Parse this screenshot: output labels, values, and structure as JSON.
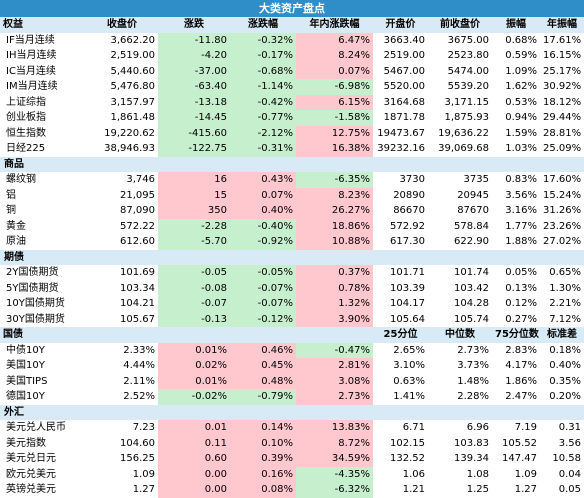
{
  "title": "大类资产盘点",
  "colors": {
    "header_bg": "#2f8ec7",
    "subheader_bg": "#d8eaf6",
    "up": "#ffc7ce",
    "down": "#c6efce"
  },
  "header": [
    "权益",
    "收盘价",
    "涨跌",
    "涨跌幅",
    "年内涨跌幅",
    "开盘价",
    "前收盘价",
    "振幅",
    "年振幅"
  ],
  "equities": [
    {
      "name": "IF当月连续",
      "close": "3,662.20",
      "chg": "-11.80",
      "pct": "-0.32%",
      "ytd": "6.47%",
      "open": "3663.40",
      "prev": "3675.00",
      "amp": "0.68%",
      "yamp": "17.61%",
      "chg_c": "g",
      "pct_c": "g",
      "ytd_c": "r"
    },
    {
      "name": "IH当月连续",
      "close": "2,519.00",
      "chg": "-4.20",
      "pct": "-0.17%",
      "ytd": "8.24%",
      "open": "2519.00",
      "prev": "2523.80",
      "amp": "0.59%",
      "yamp": "16.15%",
      "chg_c": "g",
      "pct_c": "g",
      "ytd_c": "r"
    },
    {
      "name": "IC当月连续",
      "close": "5,440.60",
      "chg": "-37.00",
      "pct": "-0.68%",
      "ytd": "0.07%",
      "open": "5467.00",
      "prev": "5474.00",
      "amp": "1.09%",
      "yamp": "25.17%",
      "chg_c": "g",
      "pct_c": "g",
      "ytd_c": "r"
    },
    {
      "name": "IM当月连续",
      "close": "5,476.80",
      "chg": "-63.40",
      "pct": "-1.14%",
      "ytd": "-6.98%",
      "open": "5520.00",
      "prev": "5539.20",
      "amp": "1.62%",
      "yamp": "30.92%",
      "chg_c": "g",
      "pct_c": "g",
      "ytd_c": "g"
    },
    {
      "name": "上证综指",
      "close": "3,157.97",
      "chg": "-13.18",
      "pct": "-0.42%",
      "ytd": "6.15%",
      "open": "3164.68",
      "prev": "3,171.15",
      "amp": "0.53%",
      "yamp": "18.12%",
      "chg_c": "g",
      "pct_c": "g",
      "ytd_c": "r"
    },
    {
      "name": "创业板指",
      "close": "1,861.48",
      "chg": "-14.45",
      "pct": "-0.77%",
      "ytd": "-1.58%",
      "open": "1871.78",
      "prev": "1,875.93",
      "amp": "0.94%",
      "yamp": "29.44%",
      "chg_c": "g",
      "pct_c": "g",
      "ytd_c": "g"
    },
    {
      "name": "恒生指数",
      "close": "19,220.62",
      "chg": "-415.60",
      "pct": "-2.12%",
      "ytd": "12.75%",
      "open": "19473.67",
      "prev": "19,636.22",
      "amp": "1.59%",
      "yamp": "28.81%",
      "chg_c": "g",
      "pct_c": "g",
      "ytd_c": "r"
    },
    {
      "name": "日经225",
      "close": "38,946.93",
      "chg": "-122.75",
      "pct": "-0.31%",
      "ytd": "16.38%",
      "open": "39232.16",
      "prev": "39,069.68",
      "amp": "1.03%",
      "yamp": "25.09%",
      "chg_c": "g",
      "pct_c": "g",
      "ytd_c": "r"
    }
  ],
  "commodities_label": "商品",
  "commodities": [
    {
      "name": "螺纹钢",
      "close": "3,746",
      "chg": "16",
      "pct": "0.43%",
      "ytd": "-6.35%",
      "open": "3730",
      "prev": "3735",
      "amp": "0.83%",
      "yamp": "17.60%",
      "chg_c": "r",
      "pct_c": "r",
      "ytd_c": "g"
    },
    {
      "name": "铝",
      "close": "21,095",
      "chg": "15",
      "pct": "0.07%",
      "ytd": "8.23%",
      "open": "20890",
      "prev": "20945",
      "amp": "3.56%",
      "yamp": "15.24%",
      "chg_c": "r",
      "pct_c": "r",
      "ytd_c": "r"
    },
    {
      "name": "铜",
      "close": "87,090",
      "chg": "350",
      "pct": "0.40%",
      "ytd": "26.27%",
      "open": "86670",
      "prev": "87670",
      "amp": "3.16%",
      "yamp": "31.26%",
      "chg_c": "r",
      "pct_c": "r",
      "ytd_c": "r"
    },
    {
      "name": "黄金",
      "close": "572.22",
      "chg": "-2.28",
      "pct": "-0.40%",
      "ytd": "18.86%",
      "open": "572.92",
      "prev": "578.84",
      "amp": "1.77%",
      "yamp": "23.26%",
      "chg_c": "g",
      "pct_c": "g",
      "ytd_c": "r"
    },
    {
      "name": "原油",
      "close": "612.60",
      "chg": "-5.70",
      "pct": "-0.92%",
      "ytd": "10.88%",
      "open": "617.30",
      "prev": "622.90",
      "amp": "1.88%",
      "yamp": "27.02%",
      "chg_c": "g",
      "pct_c": "g",
      "ytd_c": "r"
    }
  ],
  "futures_label": "期债",
  "futures": [
    {
      "name": "2Y国债期货",
      "close": "101.69",
      "chg": "-0.05",
      "pct": "-0.05%",
      "ytd": "0.37%",
      "open": "101.71",
      "prev": "101.74",
      "amp": "0.05%",
      "yamp": "0.65%",
      "chg_c": "g",
      "pct_c": "g",
      "ytd_c": "r"
    },
    {
      "name": "5Y国债期货",
      "close": "103.34",
      "chg": "-0.08",
      "pct": "-0.07%",
      "ytd": "0.78%",
      "open": "103.39",
      "prev": "103.42",
      "amp": "0.13%",
      "yamp": "1.30%",
      "chg_c": "g",
      "pct_c": "g",
      "ytd_c": "r"
    },
    {
      "name": "10Y国债期货",
      "close": "104.21",
      "chg": "-0.07",
      "pct": "-0.07%",
      "ytd": "1.32%",
      "open": "104.17",
      "prev": "104.28",
      "amp": "0.12%",
      "yamp": "2.21%",
      "chg_c": "g",
      "pct_c": "g",
      "ytd_c": "r"
    },
    {
      "name": "30Y国债期货",
      "close": "105.67",
      "chg": "-0.13",
      "pct": "-0.12%",
      "ytd": "3.90%",
      "open": "105.64",
      "prev": "105.74",
      "amp": "0.27%",
      "yamp": "7.12%",
      "chg_c": "g",
      "pct_c": "g",
      "ytd_c": "r"
    }
  ],
  "bonds_header": [
    "国债",
    "",
    "",
    "",
    "",
    "25分位",
    "中位数",
    "75分位数",
    "标准差"
  ],
  "bonds": [
    {
      "name": "中债10Y",
      "close": "2.33%",
      "chg": "0.01%",
      "pct": "0.46%",
      "ytd": "-0.47%",
      "open": "2.65%",
      "prev": "2.73%",
      "amp": "2.83%",
      "yamp": "0.18%",
      "chg_c": "r",
      "pct_c": "r",
      "ytd_c": "g"
    },
    {
      "name": "美国10Y",
      "close": "4.44%",
      "chg": "0.02%",
      "pct": "0.45%",
      "ytd": "2.81%",
      "open": "3.10%",
      "prev": "3.73%",
      "amp": "4.17%",
      "yamp": "0.40%",
      "chg_c": "r",
      "pct_c": "r",
      "ytd_c": "r"
    },
    {
      "name": "美国TIPS",
      "close": "2.11%",
      "chg": "0.01%",
      "pct": "0.48%",
      "ytd": "3.08%",
      "open": "0.63%",
      "prev": "1.48%",
      "amp": "1.86%",
      "yamp": "0.35%",
      "chg_c": "r",
      "pct_c": "r",
      "ytd_c": "r"
    },
    {
      "name": "德国10Y",
      "close": "2.52%",
      "chg": "-0.02%",
      "pct": "-0.79%",
      "ytd": "2.73%",
      "open": "1.41%",
      "prev": "2.28%",
      "amp": "2.47%",
      "yamp": "0.20%",
      "chg_c": "g",
      "pct_c": "g",
      "ytd_c": "r"
    }
  ],
  "fx_label": "外汇",
  "fx": [
    {
      "name": "美元兑人民币",
      "close": "7.23",
      "chg": "0.01",
      "pct": "0.14%",
      "ytd": "13.83%",
      "open": "6.71",
      "prev": "6.96",
      "amp": "7.19",
      "yamp": "0.31",
      "chg_c": "r",
      "pct_c": "r",
      "ytd_c": "r"
    },
    {
      "name": "美元指数",
      "close": "104.60",
      "chg": "0.11",
      "pct": "0.10%",
      "ytd": "8.72%",
      "open": "102.15",
      "prev": "103.83",
      "amp": "105.52",
      "yamp": "3.56",
      "chg_c": "r",
      "pct_c": "r",
      "ytd_c": "r"
    },
    {
      "name": "美元兑日元",
      "close": "156.25",
      "chg": "0.60",
      "pct": "0.39%",
      "ytd": "34.59%",
      "open": "132.52",
      "prev": "139.34",
      "amp": "147.47",
      "yamp": "10.58",
      "chg_c": "r",
      "pct_c": "r",
      "ytd_c": "r"
    },
    {
      "name": "欧元兑美元",
      "close": "1.09",
      "chg": "0.00",
      "pct": "0.16%",
      "ytd": "-4.35%",
      "open": "1.06",
      "prev": "1.08",
      "amp": "1.09",
      "yamp": "0.04",
      "chg_c": "r",
      "pct_c": "r",
      "ytd_c": "g"
    },
    {
      "name": "英镑兑美元",
      "close": "1.27",
      "chg": "0.00",
      "pct": "0.08%",
      "ytd": "-6.32%",
      "open": "1.21",
      "prev": "1.25",
      "amp": "1.27",
      "yamp": "0.05",
      "chg_c": "r",
      "pct_c": "r",
      "ytd_c": "g"
    }
  ]
}
